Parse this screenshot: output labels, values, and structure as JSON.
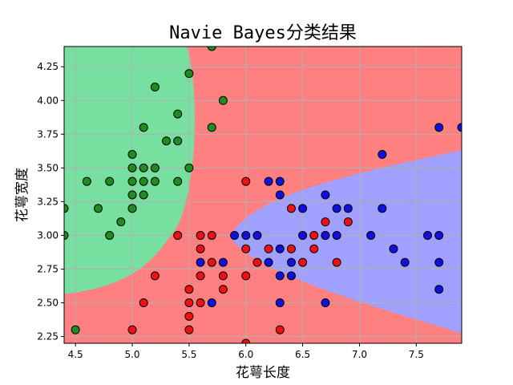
{
  "chart_data": {
    "type": "scatter",
    "title": "Navie Bayes分类结果",
    "xlabel": "花萼长度",
    "ylabel": "花萼宽度",
    "xlim": [
      4.4,
      7.9
    ],
    "ylim": [
      2.2,
      4.4
    ],
    "xticks": [
      4.5,
      5.0,
      5.5,
      6.0,
      6.5,
      7.0,
      7.5
    ],
    "xtick_labels": [
      "4.5",
      "5.0",
      "5.5",
      "6.0",
      "6.5",
      "7.0",
      "7.5"
    ],
    "yticks": [
      2.25,
      2.5,
      2.75,
      3.0,
      3.25,
      3.5,
      3.75,
      4.0,
      4.25
    ],
    "ytick_labels": [
      "2.25",
      "2.50",
      "2.75",
      "3.00",
      "3.25",
      "3.50",
      "3.75",
      "4.00",
      "4.25"
    ],
    "grid": true,
    "region_colors": {
      "class_0": "#77e0a0",
      "class_1": "#ff8080",
      "class_2": "#a0a0ff"
    },
    "series": [
      {
        "color": "#1e8c1e",
        "points": [
          [
            4.4,
            3.2
          ],
          [
            4.4,
            3.0
          ],
          [
            4.5,
            2.3
          ],
          [
            4.6,
            3.4
          ],
          [
            4.7,
            3.2
          ],
          [
            4.8,
            3.4
          ],
          [
            4.8,
            3.0
          ],
          [
            4.9,
            3.1
          ],
          [
            5.0,
            3.6
          ],
          [
            5.0,
            3.5
          ],
          [
            5.0,
            3.4
          ],
          [
            5.0,
            3.3
          ],
          [
            5.0,
            3.2
          ],
          [
            5.1,
            3.8
          ],
          [
            5.1,
            3.5
          ],
          [
            5.1,
            3.4
          ],
          [
            5.1,
            3.3
          ],
          [
            5.2,
            4.1
          ],
          [
            5.2,
            3.5
          ],
          [
            5.2,
            3.4
          ],
          [
            5.3,
            3.7
          ],
          [
            5.4,
            3.9
          ],
          [
            5.4,
            3.7
          ],
          [
            5.4,
            3.4
          ],
          [
            5.5,
            4.2
          ],
          [
            5.5,
            3.5
          ],
          [
            5.7,
            4.4
          ],
          [
            5.7,
            3.8
          ],
          [
            5.8,
            4.0
          ]
        ]
      },
      {
        "color": "#ee1111",
        "points": [
          [
            5.0,
            2.3
          ],
          [
            5.1,
            2.5
          ],
          [
            5.2,
            2.7
          ],
          [
            5.4,
            3.0
          ],
          [
            5.5,
            2.6
          ],
          [
            5.5,
            2.5
          ],
          [
            5.5,
            2.4
          ],
          [
            5.5,
            2.3
          ],
          [
            5.6,
            3.0
          ],
          [
            5.6,
            2.9
          ],
          [
            5.6,
            2.7
          ],
          [
            5.6,
            2.5
          ],
          [
            5.7,
            3.0
          ],
          [
            5.7,
            2.8
          ],
          [
            5.8,
            2.7
          ],
          [
            5.8,
            2.6
          ],
          [
            6.0,
            3.4
          ],
          [
            6.0,
            2.9
          ],
          [
            6.0,
            2.7
          ],
          [
            6.0,
            2.2
          ],
          [
            6.1,
            2.8
          ],
          [
            6.2,
            2.9
          ],
          [
            6.3,
            2.3
          ],
          [
            6.4,
            3.2
          ],
          [
            6.4,
            2.9
          ],
          [
            6.5,
            2.8
          ],
          [
            6.6,
            3.0
          ],
          [
            6.6,
            2.9
          ],
          [
            6.7,
            3.1
          ],
          [
            6.7,
            3.0
          ],
          [
            6.8,
            2.8
          ],
          [
            6.9,
            3.1
          ]
        ]
      },
      {
        "color": "#1111dd",
        "points": [
          [
            5.6,
            2.8
          ],
          [
            5.7,
            2.5
          ],
          [
            5.8,
            2.8
          ],
          [
            5.9,
            3.0
          ],
          [
            6.0,
            3.0
          ],
          [
            6.1,
            3.0
          ],
          [
            6.2,
            2.8
          ],
          [
            6.2,
            3.4
          ],
          [
            6.3,
            3.4
          ],
          [
            6.3,
            3.3
          ],
          [
            6.3,
            2.9
          ],
          [
            6.3,
            2.7
          ],
          [
            6.3,
            2.5
          ],
          [
            6.4,
            2.8
          ],
          [
            6.4,
            2.7
          ],
          [
            6.5,
            3.2
          ],
          [
            6.5,
            3.0
          ],
          [
            6.7,
            3.3
          ],
          [
            6.7,
            3.0
          ],
          [
            6.7,
            2.5
          ],
          [
            6.8,
            3.0
          ],
          [
            6.8,
            3.2
          ],
          [
            6.9,
            3.2
          ],
          [
            7.1,
            3.0
          ],
          [
            7.2,
            3.6
          ],
          [
            7.2,
            3.2
          ],
          [
            7.3,
            2.9
          ],
          [
            7.4,
            2.8
          ],
          [
            7.6,
            3.0
          ],
          [
            7.7,
            3.8
          ],
          [
            7.7,
            3.0
          ],
          [
            7.7,
            2.8
          ],
          [
            7.7,
            2.6
          ],
          [
            7.9,
            3.8
          ]
        ]
      }
    ]
  }
}
